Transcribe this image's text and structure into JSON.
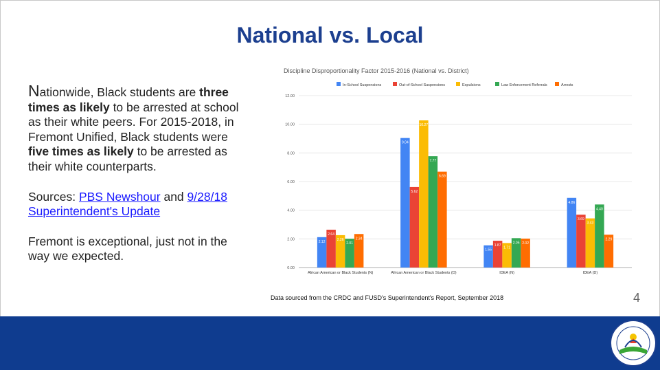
{
  "slide": {
    "title": "National vs. Local",
    "page_number": "4",
    "source_note": "Data sourced from the CRDC and FUSD's Superintendent's Report, September 2018"
  },
  "body": {
    "p1_first_letter": "N",
    "p1_a": "ationwide, Black students are ",
    "p1_b": "three times as likely",
    "p1_c": " to be arrested at school as their white peers. For 2015-2018, in Fremont Unified, Black students were ",
    "p1_d": "five times as likely",
    "p1_e": " to be arrested as their white counterparts.",
    "sources_prefix": "Sources: ",
    "link1": "PBS Newshour",
    "sources_and": " and ",
    "link2": "9/28/18 Superintendent's Update",
    "p3": "Fremont is exceptional, just not in the way we expected."
  },
  "logo": {
    "text": "FREMONT UNIFIED SCHOOL DISTRICT",
    "colors": [
      "#1c3f8f",
      "#3aa635",
      "#f5c400",
      "#e5402b"
    ]
  },
  "chart_data": {
    "type": "bar",
    "title": "Discipline Disproportionality Factor 2015-2016 (National vs. District)",
    "categories": [
      "African American or Black Students (N)",
      "African American or Black Students (D)",
      "IDEA (N)",
      "IDEA (D)"
    ],
    "series": [
      {
        "name": "In-School Suspensions",
        "color": "#4285f4",
        "values": [
          2.12,
          9.04,
          1.55,
          4.86
        ]
      },
      {
        "name": "Out-of-School Suspensions",
        "color": "#ea4335",
        "values": [
          2.64,
          5.62,
          1.87,
          3.69
        ]
      },
      {
        "name": "Expulsions",
        "color": "#fbbc04",
        "values": [
          2.26,
          10.27,
          1.71,
          3.43
        ]
      },
      {
        "name": "Law Enforcement Referrals",
        "color": "#34a853",
        "values": [
          2.01,
          7.77,
          2.05,
          4.4
        ]
      },
      {
        "name": "Arrests",
        "color": "#ff6d01",
        "values": [
          2.34,
          6.69,
          2.02,
          2.29
        ]
      }
    ],
    "data_labels": [
      [
        "2.12",
        "9.04",
        "1.55",
        "4.86"
      ],
      [
        "2.64",
        "5.62",
        "1.87",
        "3.69"
      ],
      [
        "2.26",
        "10.27",
        "1.71",
        "3.43"
      ],
      [
        "2.01",
        "7.77",
        "2.05",
        "4.40"
      ],
      [
        "2.34",
        "6.69",
        "2.02",
        "2.29"
      ]
    ],
    "ylim": [
      0,
      12
    ],
    "yticks": [
      "0.00",
      "2.00",
      "4.00",
      "6.00",
      "8.00",
      "10.00",
      "12.00"
    ],
    "grid": true,
    "legend_position": "top"
  }
}
